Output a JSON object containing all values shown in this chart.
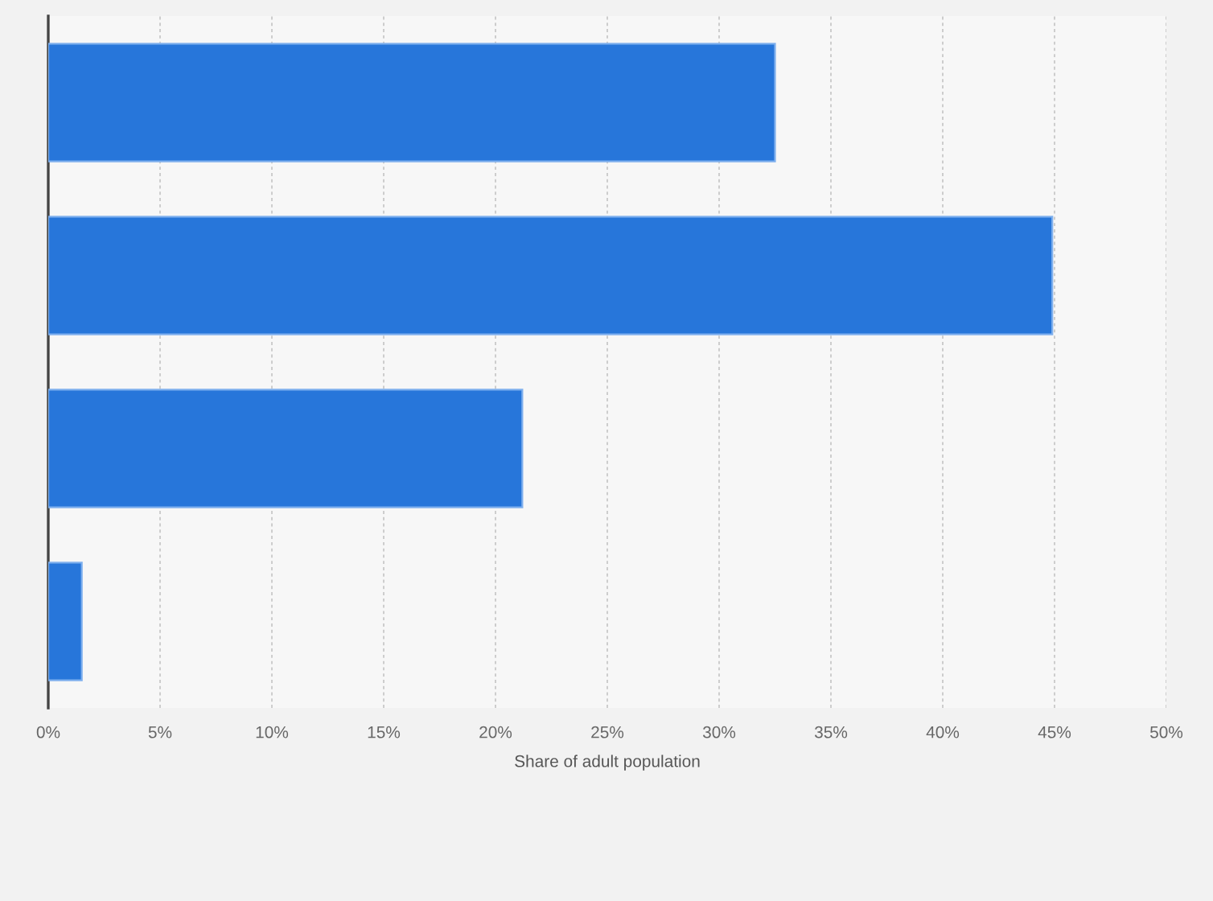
{
  "chart_data": {
    "type": "bar",
    "orientation": "horizontal",
    "xlabel": "Share of adult population",
    "categories": [
      null,
      null,
      null,
      null
    ],
    "values": [
      32.5,
      44.9,
      21.2,
      1.5
    ],
    "color": "#2776da",
    "xlim": [
      0,
      50
    ],
    "xticks": [
      {
        "value": 0,
        "label": "0%"
      },
      {
        "value": 5,
        "label": "5%"
      },
      {
        "value": 10,
        "label": "10%"
      },
      {
        "value": 15,
        "label": "15%"
      },
      {
        "value": 20,
        "label": "20%"
      },
      {
        "value": 25,
        "label": "25%"
      },
      {
        "value": 30,
        "label": "30%"
      },
      {
        "value": 35,
        "label": "35%"
      },
      {
        "value": 40,
        "label": "40%"
      },
      {
        "value": 45,
        "label": "45%"
      },
      {
        "value": 50,
        "label": "50%"
      }
    ],
    "grid": "x"
  }
}
